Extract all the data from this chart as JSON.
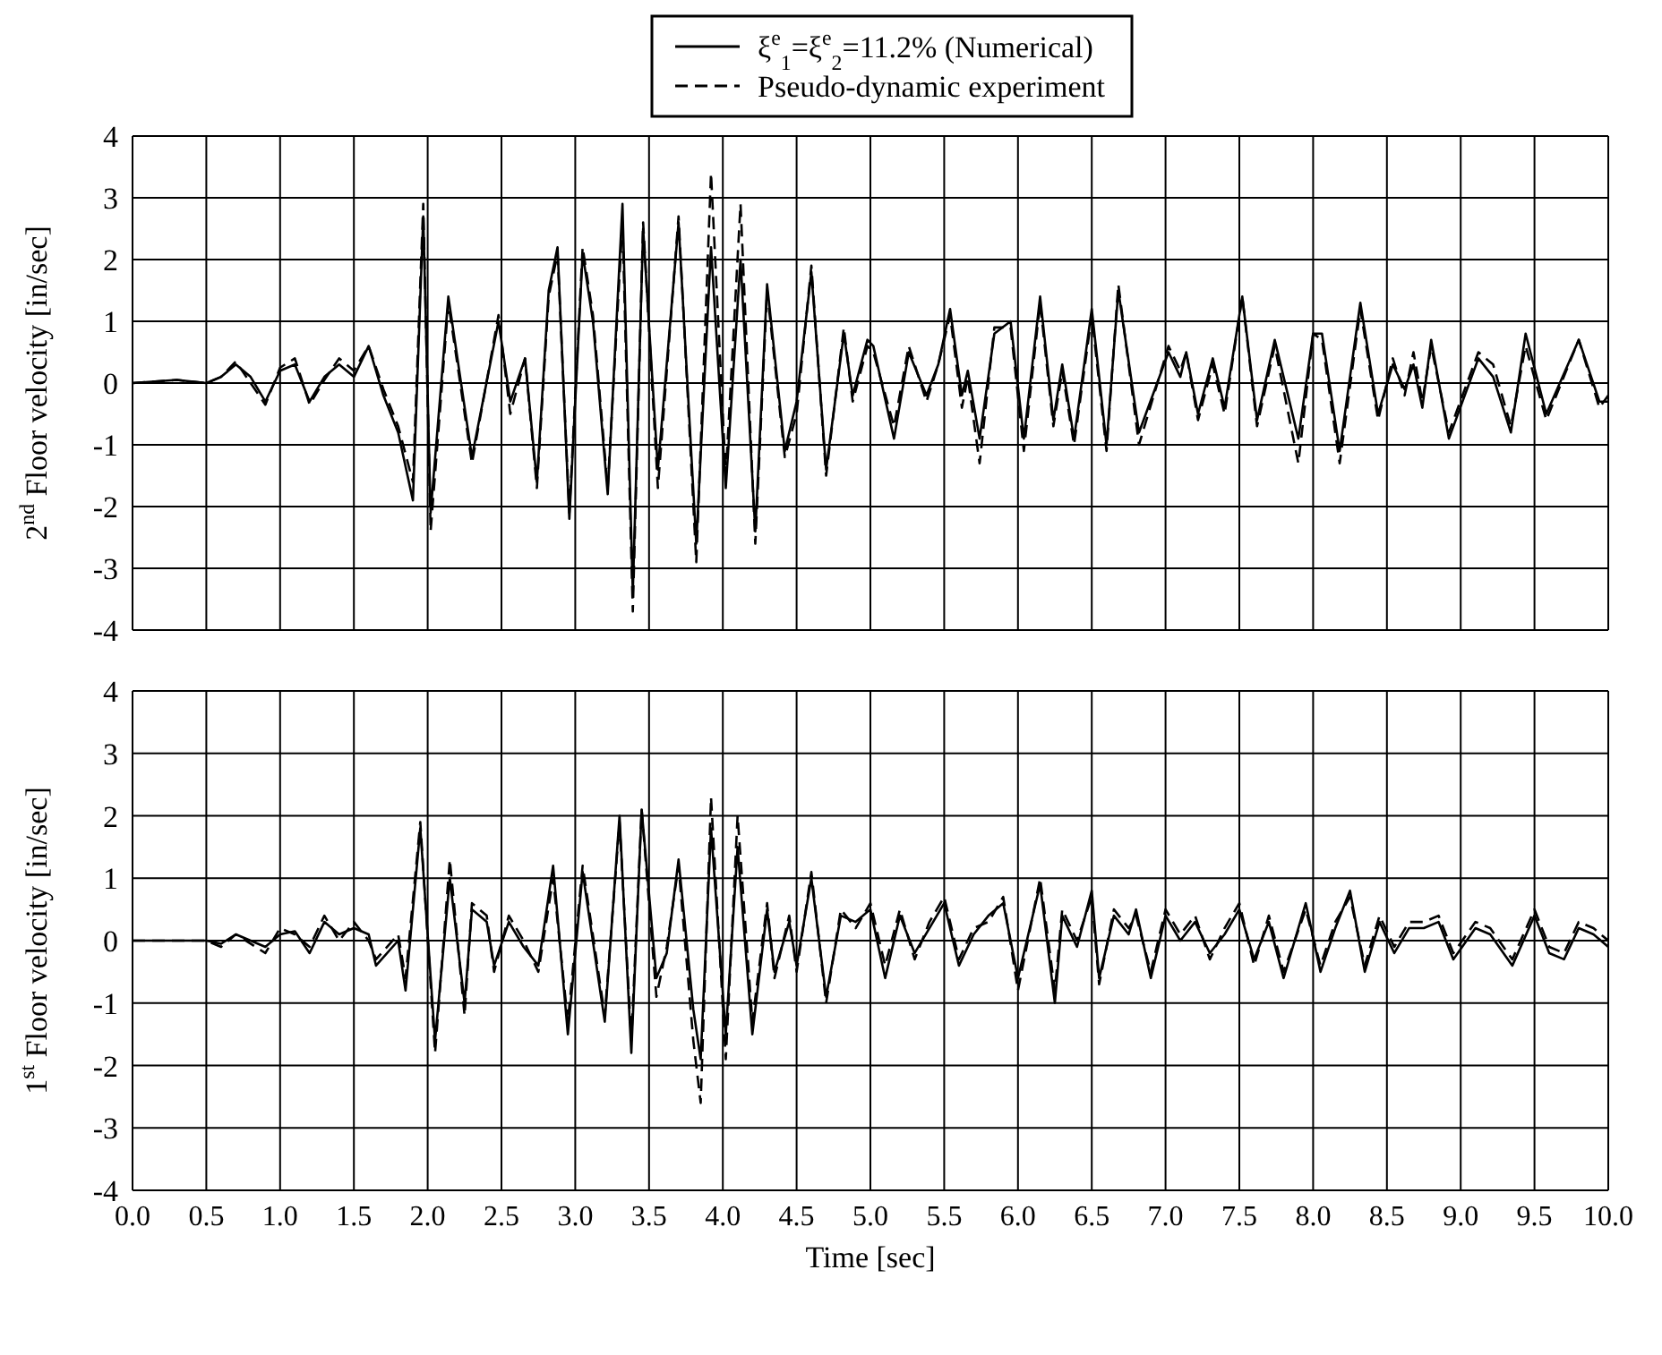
{
  "chart_data": [
    {
      "type": "line",
      "ylabel": "2$^{nd}$ Floor velocity [in/sec]",
      "legend": "top",
      "grid": true,
      "tick_labels": "y",
      "xlim": [
        0,
        10
      ],
      "xticks": [
        0,
        0.5,
        1,
        1.5,
        2,
        2.5,
        3,
        3.5,
        4,
        4.5,
        5,
        5.5,
        6,
        6.5,
        7,
        7.5,
        8,
        8.5,
        9,
        9.5,
        10
      ],
      "ylim": [
        -4,
        4
      ],
      "yticks": [
        -4,
        -3,
        -2,
        -1,
        0,
        1,
        2,
        3,
        4
      ],
      "x": [
        0,
        0.3,
        0.5,
        0.6,
        0.7,
        0.8,
        0.9,
        1.0,
        1.1,
        1.2,
        1.3,
        1.4,
        1.5,
        1.6,
        1.7,
        1.8,
        1.9,
        1.97,
        2.02,
        2.14,
        2.3,
        2.48,
        2.56,
        2.66,
        2.74,
        2.82,
        2.88,
        2.96,
        3.05,
        3.12,
        3.22,
        3.32,
        3.39,
        3.46,
        3.56,
        3.7,
        3.82,
        3.92,
        4.02,
        4.12,
        4.22,
        4.3,
        4.42,
        4.5,
        4.6,
        4.7,
        4.82,
        4.88,
        4.98,
        5.02,
        5.16,
        5.26,
        5.38,
        5.46,
        5.54,
        5.62,
        5.66,
        5.74,
        5.84,
        5.95,
        6.04,
        6.15,
        6.24,
        6.3,
        6.38,
        6.5,
        6.6,
        6.68,
        6.82,
        7.02,
        7.1,
        7.14,
        7.22,
        7.32,
        7.4,
        7.52,
        7.62,
        7.74,
        7.9,
        8.0,
        8.06,
        8.18,
        8.32,
        8.44,
        8.54,
        8.62,
        8.68,
        8.74,
        8.8,
        8.92,
        9.12,
        9.22,
        9.34,
        9.44,
        9.58,
        9.8,
        9.94,
        10.0
      ],
      "series": [
        {
          "name": "ξ$^{e}$$_{1}$=ξ$^{e}$$_{2}$=11.2% (Numerical)",
          "color": "#000000",
          "line_style": "solid",
          "values": [
            0,
            0.05,
            0,
            0.1,
            0.3,
            0.1,
            -0.3,
            0.2,
            0.3,
            -0.3,
            0.1,
            0.3,
            0.1,
            0.6,
            -0.2,
            -0.8,
            -1.9,
            2.7,
            -2.1,
            1.4,
            -1.2,
            1.0,
            -0.3,
            0.4,
            -1.6,
            1.5,
            2.2,
            -2.2,
            2.1,
            1.0,
            -1.8,
            2.9,
            -3.4,
            2.5,
            -1.4,
            2.6,
            -2.6,
            2.2,
            -1.7,
            2.0,
            -2.4,
            1.6,
            -1.1,
            -0.3,
            1.8,
            -1.4,
            0.8,
            -0.2,
            0.7,
            0.6,
            -0.9,
            0.5,
            -0.2,
            0.3,
            1.2,
            -0.2,
            0.2,
            -0.9,
            0.8,
            1.0,
            -0.9,
            1.4,
            -0.6,
            0.3,
            -0.9,
            1.2,
            -1.0,
            1.5,
            -0.8,
            0.5,
            0.1,
            0.5,
            -0.5,
            0.4,
            -0.4,
            1.4,
            -0.6,
            0.7,
            -0.9,
            0.8,
            0.8,
            -1.1,
            1.3,
            -0.5,
            0.3,
            -0.1,
            0.3,
            -0.4,
            0.7,
            -0.9,
            0.4,
            0.1,
            -0.8,
            0.8,
            -0.5,
            0.7,
            -0.3,
            -0.3
          ]
        },
        {
          "name": "Pseudo-dynamic experiment",
          "color": "#000000",
          "line_style": "dashed",
          "values": [
            0,
            0.05,
            0,
            0.1,
            0.35,
            0,
            -0.35,
            0.25,
            0.4,
            -0.35,
            0.05,
            0.4,
            0.2,
            0.6,
            -0.1,
            -0.7,
            -1.6,
            2.9,
            -2.4,
            1.3,
            -1.3,
            1.1,
            -0.5,
            0.4,
            -1.7,
            1.4,
            2.1,
            -2.1,
            2.2,
            1.1,
            -1.7,
            2.6,
            -3.7,
            2.6,
            -1.7,
            2.7,
            -2.9,
            3.4,
            -1.5,
            2.9,
            -2.6,
            1.5,
            -1.2,
            -0.5,
            1.9,
            -1.5,
            0.9,
            -0.3,
            0.6,
            0.5,
            -0.7,
            0.6,
            -0.3,
            0.3,
            1.1,
            -0.4,
            0.1,
            -1.3,
            0.9,
            0.9,
            -1.1,
            1.3,
            -0.7,
            0.2,
            -1.0,
            1.1,
            -1.1,
            1.6,
            -1.0,
            0.6,
            0.2,
            0.5,
            -0.6,
            0.3,
            -0.5,
            1.4,
            -0.7,
            0.6,
            -1.3,
            0.8,
            0.7,
            -1.3,
            1.2,
            -0.6,
            0.4,
            -0.2,
            0.5,
            -0.3,
            0.6,
            -0.8,
            0.5,
            0.3,
            -0.7,
            0.6,
            -0.6,
            0.7,
            -0.4,
            -0.2
          ]
        }
      ]
    },
    {
      "type": "line",
      "xlabel": "Time [sec]",
      "ylabel": "1$^{st}$ Floor velocity [in/sec]",
      "grid": true,
      "xlim": [
        0,
        10
      ],
      "xticks": [
        {
          "value": 0,
          "label": "0.0"
        },
        {
          "value": 0.5,
          "label": "0.5"
        },
        {
          "value": 1,
          "label": "1.0"
        },
        {
          "value": 1.5,
          "label": "1.5"
        },
        {
          "value": 2,
          "label": "2.0"
        },
        {
          "value": 2.5,
          "label": "2.5"
        },
        {
          "value": 3,
          "label": "3.0"
        },
        {
          "value": 3.5,
          "label": "3.5"
        },
        {
          "value": 4,
          "label": "4.0"
        },
        {
          "value": 4.5,
          "label": "4.5"
        },
        {
          "value": 5,
          "label": "5.0"
        },
        {
          "value": 5.5,
          "label": "5.5"
        },
        {
          "value": 6,
          "label": "6.0"
        },
        {
          "value": 6.5,
          "label": "6.5"
        },
        {
          "value": 7,
          "label": "7.0"
        },
        {
          "value": 7.5,
          "label": "7.5"
        },
        {
          "value": 8,
          "label": "8.0"
        },
        {
          "value": 8.5,
          "label": "8.5"
        },
        {
          "value": 9,
          "label": "9.0"
        },
        {
          "value": 9.5,
          "label": "9.5"
        },
        {
          "value": 10,
          "label": "10.0"
        }
      ],
      "ylim": [
        -4,
        4
      ],
      "yticks": [
        -4,
        -3,
        -2,
        -1,
        0,
        1,
        2,
        3,
        4
      ],
      "x": [
        0,
        0.5,
        0.6,
        0.7,
        0.9,
        1.0,
        1.1,
        1.2,
        1.3,
        1.4,
        1.5,
        1.6,
        1.65,
        1.8,
        1.85,
        1.95,
        2.05,
        2.15,
        2.25,
        2.3,
        2.4,
        2.45,
        2.55,
        2.65,
        2.75,
        2.85,
        2.95,
        3.05,
        3.2,
        3.3,
        3.38,
        3.45,
        3.55,
        3.62,
        3.7,
        3.8,
        3.85,
        3.92,
        4.02,
        4.1,
        4.2,
        4.3,
        4.35,
        4.45,
        4.5,
        4.6,
        4.7,
        4.8,
        4.9,
        5.0,
        5.1,
        5.2,
        5.3,
        5.4,
        5.5,
        5.6,
        5.7,
        5.8,
        5.9,
        6.0,
        6.15,
        6.25,
        6.3,
        6.4,
        6.5,
        6.55,
        6.65,
        6.75,
        6.8,
        6.9,
        7.0,
        7.1,
        7.2,
        7.3,
        7.4,
        7.5,
        7.6,
        7.7,
        7.8,
        7.95,
        8.05,
        8.15,
        8.25,
        8.35,
        8.45,
        8.55,
        8.65,
        8.75,
        8.85,
        8.95,
        9.1,
        9.2,
        9.35,
        9.5,
        9.6,
        9.7,
        9.8,
        9.9,
        10.0
      ],
      "series": [
        {
          "color": "#000000",
          "line_style": "solid",
          "values": [
            0,
            0,
            -0.05,
            0.1,
            -0.1,
            0.1,
            0.15,
            -0.2,
            0.3,
            0.1,
            0.2,
            0.1,
            -0.4,
            0.0,
            -0.8,
            1.8,
            -1.6,
            1.0,
            -1.0,
            0.5,
            0.3,
            -0.4,
            0.3,
            -0.1,
            -0.4,
            1.2,
            -1.5,
            1.1,
            -1.3,
            2.0,
            -1.8,
            2.1,
            -0.6,
            -0.2,
            1.3,
            -1.1,
            -1.9,
            1.8,
            -1.5,
            1.5,
            -1.5,
            0.5,
            -0.5,
            0.3,
            -0.4,
            1.0,
            -0.9,
            0.4,
            0.3,
            0.5,
            -0.6,
            0.4,
            -0.2,
            0.2,
            0.6,
            -0.4,
            0.1,
            0.4,
            0.6,
            -0.6,
            0.9,
            -1.0,
            0.4,
            -0.1,
            0.8,
            -0.6,
            0.4,
            0.1,
            0.5,
            -0.6,
            0.4,
            0.0,
            0.3,
            -0.2,
            0.1,
            0.5,
            -0.3,
            0.3,
            -0.6,
            0.6,
            -0.5,
            0.2,
            0.8,
            -0.5,
            0.3,
            -0.2,
            0.2,
            0.2,
            0.3,
            -0.3,
            0.2,
            0.1,
            -0.4,
            0.4,
            -0.2,
            -0.3,
            0.2,
            0.1,
            -0.1
          ]
        },
        {
          "color": "#000000",
          "line_style": "dashed",
          "values": [
            0,
            0,
            -0.1,
            0.1,
            -0.2,
            0.2,
            0.1,
            -0.1,
            0.4,
            0.0,
            0.3,
            0.0,
            -0.3,
            0.1,
            -0.6,
            1.9,
            -1.8,
            1.3,
            -1.2,
            0.6,
            0.4,
            -0.5,
            0.4,
            0.0,
            -0.5,
            1.0,
            -1.3,
            1.2,
            -1.2,
            1.9,
            -1.6,
            2.1,
            -0.9,
            -0.1,
            1.2,
            -1.6,
            -2.6,
            2.3,
            -1.9,
            2.0,
            -1.3,
            0.6,
            -0.6,
            0.4,
            -0.5,
            1.1,
            -1.0,
            0.5,
            0.2,
            0.6,
            -0.4,
            0.5,
            -0.3,
            0.3,
            0.7,
            -0.3,
            0.2,
            0.3,
            0.7,
            -0.8,
            1.0,
            -0.8,
            0.5,
            0.0,
            0.7,
            -0.7,
            0.5,
            0.2,
            0.4,
            -0.5,
            0.5,
            0.1,
            0.4,
            -0.3,
            0.2,
            0.6,
            -0.4,
            0.4,
            -0.5,
            0.5,
            -0.4,
            0.3,
            0.7,
            -0.4,
            0.4,
            -0.1,
            0.3,
            0.3,
            0.4,
            -0.2,
            0.3,
            0.2,
            -0.3,
            0.5,
            -0.1,
            -0.2,
            0.3,
            0.2,
            0.0
          ]
        }
      ]
    }
  ]
}
